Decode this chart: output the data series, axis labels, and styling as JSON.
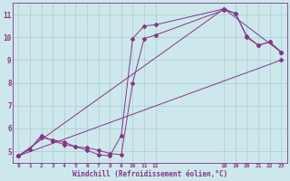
{
  "xlabel": "Windchill (Refroidissement éolien,°C)",
  "background_color": "#cce8ec",
  "grid_color": "#aacccc",
  "line_color": "#883388",
  "xlim": [
    -0.5,
    23.5
  ],
  "ylim": [
    4.5,
    11.5
  ],
  "xticks": [
    0,
    1,
    2,
    3,
    4,
    5,
    6,
    7,
    8,
    9,
    10,
    11,
    12,
    18,
    19,
    20,
    21,
    22,
    23
  ],
  "yticks": [
    5,
    6,
    7,
    8,
    9,
    10,
    11
  ],
  "series": [
    {
      "x": [
        0,
        1,
        2,
        3,
        4,
        5,
        6,
        7,
        8,
        9,
        10,
        11,
        12,
        18,
        19,
        20,
        21,
        22,
        23
      ],
      "y": [
        4.8,
        5.1,
        5.7,
        5.45,
        5.3,
        5.2,
        5.05,
        4.85,
        4.8,
        5.7,
        9.95,
        10.5,
        10.55,
        11.25,
        11.05,
        10.05,
        9.65,
        9.8,
        9.35
      ]
    },
    {
      "x": [
        0,
        1,
        2,
        3,
        4,
        5,
        6,
        7,
        8,
        9,
        10,
        11,
        12,
        18,
        19,
        20,
        21,
        22,
        23
      ],
      "y": [
        4.8,
        5.1,
        5.6,
        5.5,
        5.4,
        5.2,
        5.15,
        5.05,
        4.9,
        4.85,
        8.0,
        9.95,
        10.1,
        11.2,
        11.05,
        10.0,
        9.65,
        9.8,
        9.35
      ]
    },
    {
      "x": [
        0,
        18,
        23
      ],
      "y": [
        4.8,
        11.25,
        9.35
      ]
    },
    {
      "x": [
        0,
        23
      ],
      "y": [
        4.8,
        9.0
      ]
    }
  ]
}
